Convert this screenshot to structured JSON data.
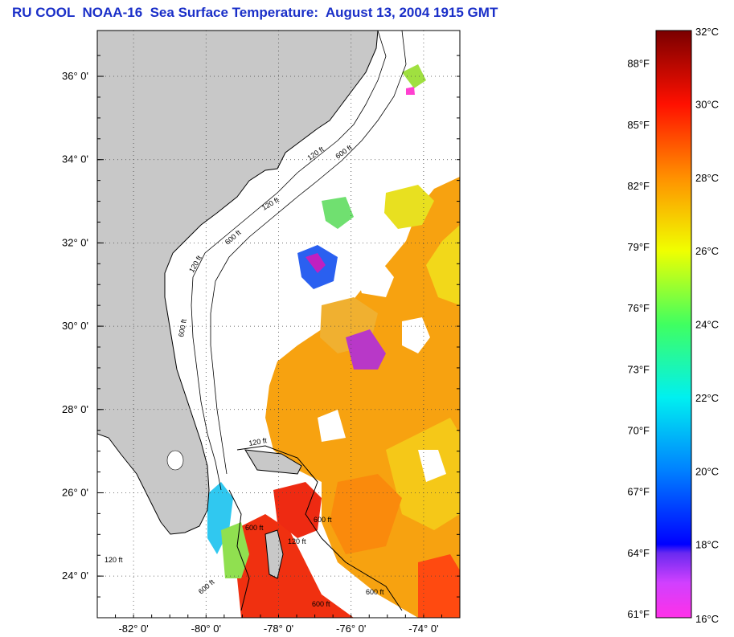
{
  "title": "RU COOL  NOAA-16  Sea Surface Temperature:  August 13, 2004 1915 GMT",
  "map": {
    "lat_labels": [
      {
        "text": "36° 0'",
        "lat": 36
      },
      {
        "text": "34° 0'",
        "lat": 34
      },
      {
        "text": "32° 0'",
        "lat": 32
      },
      {
        "text": "30° 0'",
        "lat": 30
      },
      {
        "text": "28° 0'",
        "lat": 28
      },
      {
        "text": "26° 0'",
        "lat": 26
      },
      {
        "text": "24° 0'",
        "lat": 24
      }
    ],
    "lon_labels": [
      {
        "text": "-82° 0'",
        "lon": -82
      },
      {
        "text": "-80° 0'",
        "lon": -80
      },
      {
        "text": "-78° 0'",
        "lon": -78
      },
      {
        "text": "-76° 0'",
        "lon": -76
      },
      {
        "text": "-74° 0'",
        "lon": -74
      }
    ],
    "contour_labels": [
      "120 ft",
      "600 ft",
      "120 ft",
      "600 ft",
      "120 ft",
      "600 ft",
      "120 ft",
      "600 ft",
      "120 ft",
      "600 ft",
      "600 ft",
      "600 ft",
      "120 ft",
      "600 ft"
    ],
    "colors": {
      "land": "#c8c8c8",
      "cloud": "#ffffff",
      "grid": "#555555"
    }
  },
  "colorbar": {
    "celsius": [
      "32°C",
      "30°C",
      "28°C",
      "26°C",
      "24°C",
      "22°C",
      "20°C",
      "18°C",
      "16°C"
    ],
    "fahrenheit": [
      "88°F",
      "85°F",
      "82°F",
      "79°F",
      "76°F",
      "73°F",
      "70°F",
      "67°F",
      "64°F",
      "61°F"
    ],
    "celsius_values": [
      32,
      30,
      28,
      26,
      24,
      22,
      20,
      18,
      16
    ],
    "fahrenheit_values": [
      88,
      85,
      82,
      79,
      76,
      73,
      70,
      67,
      64,
      61
    ],
    "range_c": [
      16,
      32
    ]
  }
}
